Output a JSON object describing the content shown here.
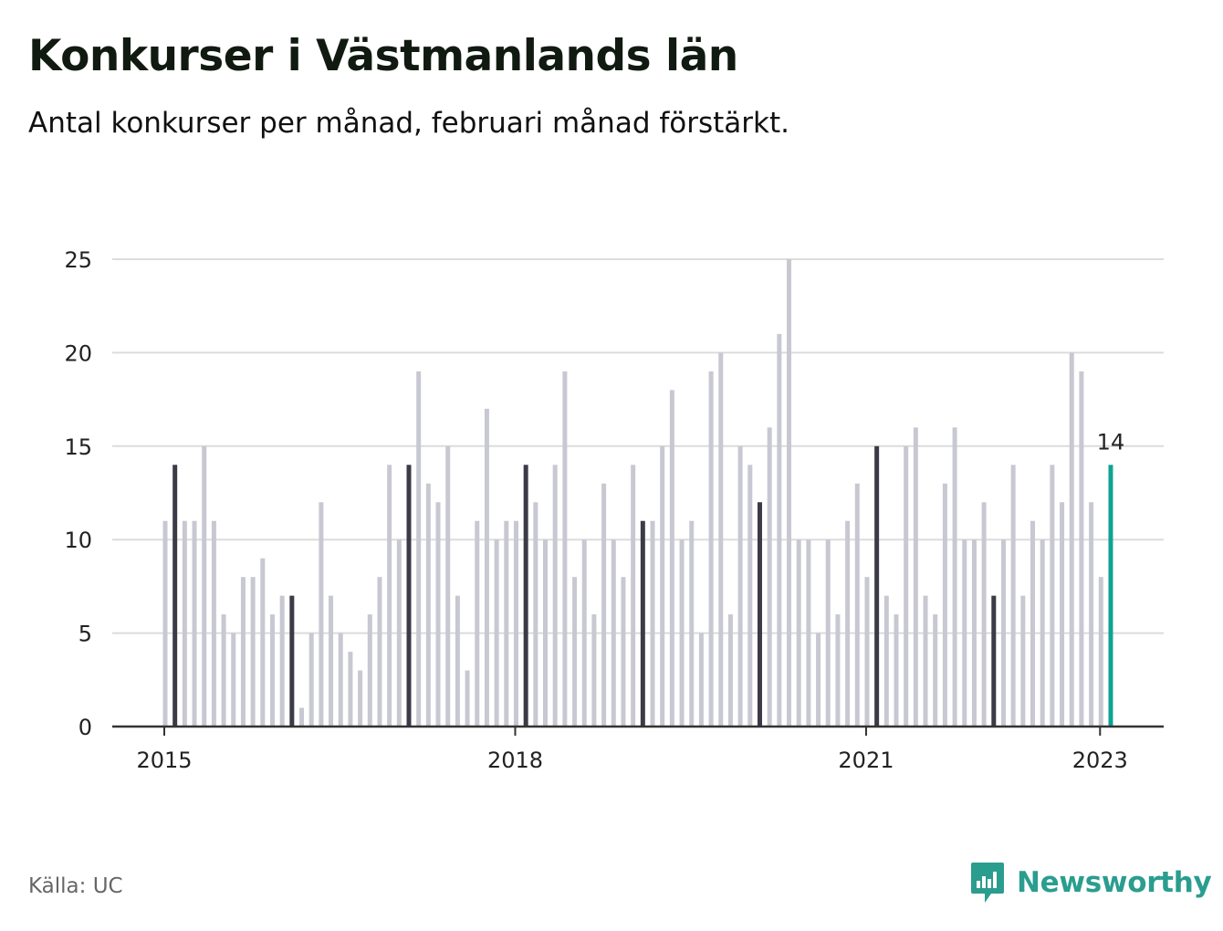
{
  "title": "Konkurser i Västmanlands län",
  "subtitle": "Antal konkurser per månad, februari månad förstärkt.",
  "source": "Källa: UC",
  "brand": {
    "name": "Newsworthy",
    "icon": "newsworthy-logo-icon"
  },
  "colors": {
    "bar": "#c8c8d2",
    "highlight": "#3b3b48",
    "latest": "#10a294",
    "grid": "#dcdcdc",
    "axis": "#333333",
    "text": "#222222"
  },
  "chart_data": {
    "type": "bar",
    "title": "Konkurser i Västmanlands län",
    "subtitle": "Antal konkurser per månad, februari månad förstärkt.",
    "xlabel": "",
    "ylabel": "",
    "ylim": [
      0,
      25
    ],
    "yticks": [
      0,
      5,
      10,
      15,
      20,
      25
    ],
    "xticks": [
      {
        "label": "2015",
        "index": 0
      },
      {
        "label": "2018",
        "index": 36
      },
      {
        "label": "2021",
        "index": 72
      },
      {
        "label": "2023",
        "index": 96
      }
    ],
    "grid": true,
    "legend": "none",
    "start": "2015-01",
    "highlight_month": "februari",
    "values": [
      11,
      14,
      11,
      11,
      15,
      11,
      6,
      5,
      8,
      8,
      9,
      6,
      7,
      7,
      1,
      5,
      12,
      7,
      5,
      4,
      3,
      6,
      8,
      14,
      10,
      14,
      19,
      13,
      12,
      15,
      7,
      3,
      11,
      17,
      10,
      11,
      11,
      14,
      12,
      10,
      14,
      19,
      8,
      10,
      6,
      13,
      10,
      8,
      14,
      11,
      11,
      15,
      18,
      10,
      11,
      5,
      19,
      20,
      6,
      15,
      14,
      12,
      16,
      21,
      25,
      10,
      10,
      5,
      10,
      6,
      11,
      13,
      8,
      15,
      7,
      6,
      15,
      16,
      7,
      6,
      13,
      16,
      10,
      10,
      12,
      7,
      10,
      14,
      7,
      11,
      10,
      14,
      12,
      20,
      19,
      12,
      8,
      14
    ],
    "latest_label": "14"
  }
}
